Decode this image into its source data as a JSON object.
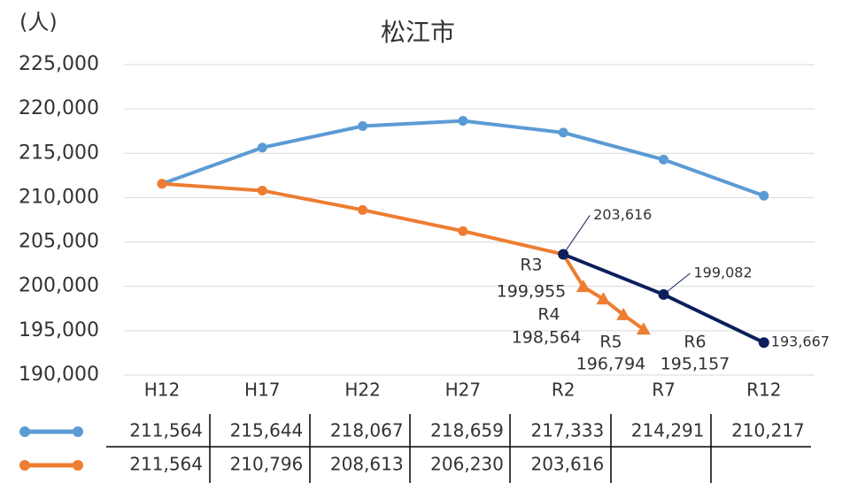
{
  "chart_data": {
    "type": "line",
    "title": "松江市",
    "y_axis_label": "(人)",
    "categories": [
      "H12",
      "H17",
      "H22",
      "H27",
      "R2",
      "R7",
      "R12"
    ],
    "ylim": [
      190000,
      225000
    ],
    "yticks": [
      {
        "value": 190000,
        "label": "190,000"
      },
      {
        "value": 195000,
        "label": "195,000"
      },
      {
        "value": 200000,
        "label": "200,000"
      },
      {
        "value": 205000,
        "label": "205,000"
      },
      {
        "value": 210000,
        "label": "210,000"
      },
      {
        "value": 215000,
        "label": "215,000"
      },
      {
        "value": 220000,
        "label": "220,000"
      },
      {
        "value": 225000,
        "label": "225,000"
      }
    ],
    "grid": true,
    "series": [
      {
        "color": "#5b9bd5",
        "values": [
          211564,
          215644,
          218067,
          218659,
          217333,
          214291,
          210217
        ],
        "value_labels": [
          "211,564",
          "215,644",
          "218,067",
          "218,659",
          "217,333",
          "214,291",
          "210,217"
        ]
      },
      {
        "color": "#ed7d31",
        "values": [
          211564,
          210796,
          208613,
          206230,
          203616,
          null,
          null
        ],
        "value_labels": [
          "211,564",
          "210,796",
          "208,613",
          "206,230",
          "203,616",
          null,
          null
        ]
      },
      {
        "color": "#0b1f5c",
        "values": [
          null,
          null,
          null,
          null,
          203616,
          199082,
          193667
        ],
        "value_labels": [
          null,
          null,
          null,
          null,
          "203,616",
          "199,082",
          "193,667"
        ]
      }
    ],
    "annual": {
      "color": "#ed7d31",
      "labels": [
        "R3",
        "R4",
        "R5",
        "R6"
      ],
      "values": [
        199955,
        198564,
        196794,
        195157
      ],
      "value_labels": [
        "199,955",
        "198,564",
        "196,794",
        "195,157"
      ]
    }
  }
}
